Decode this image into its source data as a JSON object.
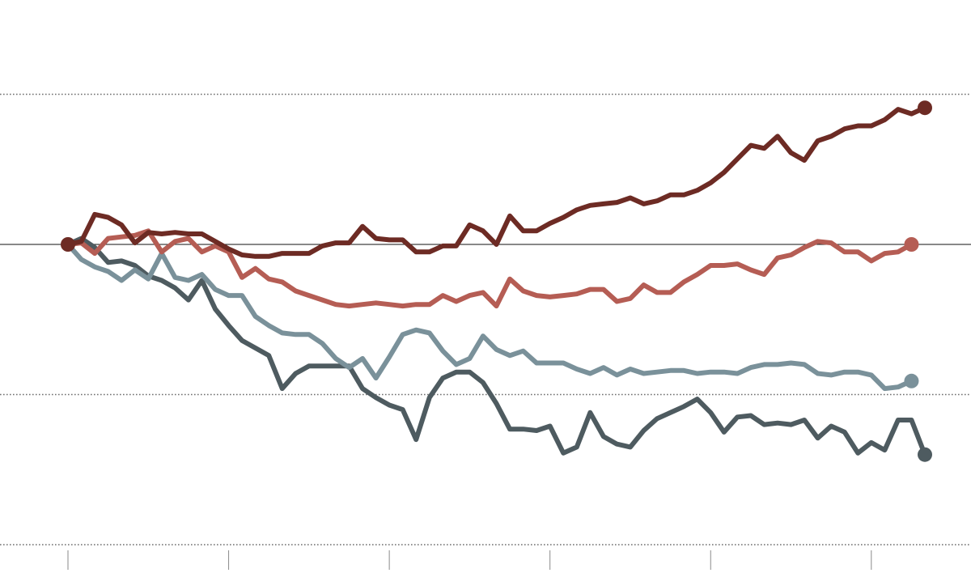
{
  "chart_data": {
    "type": "line",
    "title": "",
    "xlabel": "",
    "ylabel": "",
    "x_range": [
      0,
      64
    ],
    "x_ticks": [
      0,
      12,
      24,
      36,
      48,
      60
    ],
    "ylim": [
      -200,
      200
    ],
    "y_gridlines": [
      100,
      -100,
      -200
    ],
    "baseline": 0,
    "grid": true,
    "colors": {
      "zero_line": "#111111",
      "grid": "#6e6e6e",
      "tick": "#8a8a8a"
    },
    "series": [
      {
        "color": "#6d2b24",
        "end_marker": true,
        "start_marker": true,
        "values": [
          0,
          2,
          20,
          18,
          13,
          1,
          8,
          7,
          8,
          7,
          7,
          2,
          -3,
          -7,
          -8,
          -8,
          -6,
          -6,
          -6,
          -1,
          1,
          1,
          12,
          4,
          3,
          3,
          -5,
          -5,
          -1,
          -1,
          13,
          9,
          0,
          19,
          9,
          9,
          14,
          18,
          23,
          26,
          27,
          28,
          31,
          27,
          29,
          33,
          33,
          36,
          41,
          48,
          57,
          66,
          64,
          72,
          61,
          56,
          69,
          72,
          77,
          79,
          79,
          83,
          90,
          87,
          91
        ]
      },
      {
        "color": "#b55d54",
        "end_marker": true,
        "start_marker": false,
        "values": [
          0,
          1,
          -6,
          4,
          5,
          6,
          9,
          -5,
          2,
          4,
          -5,
          -1,
          -5,
          -22,
          -16,
          -23,
          -25,
          -31,
          -34,
          -37,
          -40,
          -41,
          -40,
          -39,
          -40,
          -41,
          -40,
          -40,
          -34,
          -38,
          -34,
          -32,
          -41,
          -23,
          -31,
          -34,
          -35,
          -34,
          -33,
          -30,
          -30,
          -38,
          -36,
          -27,
          -32,
          -32,
          -25,
          -20,
          -14,
          -14,
          -13,
          -17,
          -20,
          -9,
          -7,
          -2,
          2,
          1,
          -5,
          -5,
          -11,
          -6,
          -5,
          0
        ]
      },
      {
        "color": "#7a919a",
        "end_marker": true,
        "start_marker": false,
        "values": [
          0,
          -10,
          -15,
          -18,
          -24,
          -17,
          -23,
          -6,
          -22,
          -24,
          -20,
          -30,
          -34,
          -34,
          -48,
          -54,
          -59,
          -60,
          -60,
          -66,
          -76,
          -82,
          -76,
          -89,
          -75,
          -60,
          -57,
          -59,
          -71,
          -80,
          -76,
          -61,
          -70,
          -74,
          -71,
          -79,
          -79,
          -79,
          -83,
          -86,
          -82,
          -87,
          -83,
          -86,
          -85,
          -84,
          -84,
          -86,
          -85,
          -85,
          -86,
          -82,
          -80,
          -80,
          -79,
          -80,
          -86,
          -87,
          -85,
          -85,
          -87,
          -96,
          -95,
          -91
        ]
      },
      {
        "color": "#4e5b60",
        "end_marker": true,
        "start_marker": false,
        "values": [
          0,
          4,
          -2,
          -12,
          -11,
          -14,
          -21,
          -24,
          -29,
          -37,
          -24,
          -43,
          -54,
          -64,
          -69,
          -74,
          -96,
          -86,
          -81,
          -81,
          -81,
          -81,
          -96,
          -102,
          -107,
          -110,
          -130,
          -102,
          -89,
          -85,
          -85,
          -92,
          -106,
          -123,
          -123,
          -124,
          -121,
          -139,
          -135,
          -112,
          -128,
          -133,
          -135,
          -124,
          -116,
          -112,
          -108,
          -103,
          -112,
          -125,
          -115,
          -114,
          -120,
          -119,
          -120,
          -117,
          -129,
          -121,
          -125,
          -139,
          -132,
          -137,
          -117,
          -117,
          -140
        ]
      }
    ]
  }
}
